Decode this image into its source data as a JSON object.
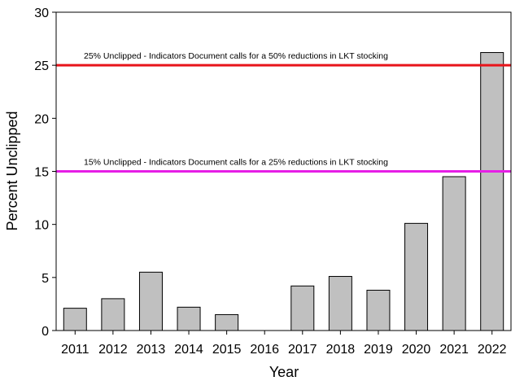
{
  "chart_data": {
    "type": "bar",
    "title": "",
    "xlabel": "Year",
    "ylabel": "Percent Unclipped",
    "categories": [
      "2011",
      "2012",
      "2013",
      "2014",
      "2015",
      "2016",
      "2017",
      "2018",
      "2019",
      "2020",
      "2021",
      "2022"
    ],
    "values": [
      2.1,
      3.0,
      5.5,
      2.2,
      1.5,
      0,
      4.2,
      5.1,
      3.8,
      10.1,
      14.5,
      26.2
    ],
    "ylim": [
      0,
      30
    ],
    "yticks": [
      "0",
      "5",
      "10",
      "15",
      "20",
      "25",
      "30"
    ],
    "grid": false,
    "bar_color": "#c0c0c0",
    "bar_edge_color": "#000000",
    "reference_lines": [
      {
        "value": 25,
        "color": "#e8141a",
        "label": "25% Unclipped - Indicators Document calls for a 50% reductions in LKT stocking"
      },
      {
        "value": 15,
        "color": "#e61ee6",
        "label": "15% Unclipped - Indicators Document calls for a 25% reductions in LKT stocking"
      }
    ]
  }
}
